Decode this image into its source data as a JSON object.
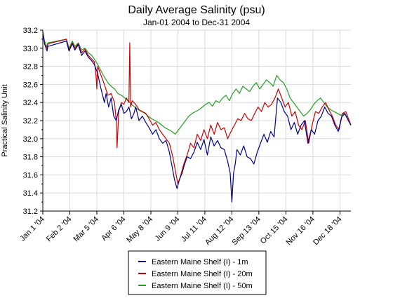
{
  "chart_data": {
    "type": "line",
    "title": "Daily Average Salinity (psu)",
    "subtitle": "Jan-01 2004 to Dec-31 2004",
    "xlabel": "",
    "ylabel": "Practical Salinity Unit",
    "x_range": [
      "2004-01-01",
      "2004-12-31"
    ],
    "ylim": [
      31.2,
      33.2
    ],
    "yticks": [
      31.2,
      31.4,
      31.6,
      31.8,
      32.0,
      32.2,
      32.4,
      32.6,
      32.8,
      33.0,
      33.2
    ],
    "ytick_labels": [
      "31.2",
      "31.4",
      "31.6",
      "31.8",
      "32.0",
      "32.2",
      "32.4",
      "32.6",
      "32.8",
      "33.0",
      "33.2"
    ],
    "xticks": [
      "2004-01-01",
      "2004-02-02",
      "2004-03-05",
      "2004-04-06",
      "2004-05-08",
      "2004-06-09",
      "2004-07-11",
      "2004-08-12",
      "2004-09-13",
      "2004-10-15",
      "2004-11-16",
      "2004-12-18"
    ],
    "xtick_labels": [
      "Jan 1 '04",
      "Feb 2 '04",
      "Mar 5 '04",
      "Apr 6 '04",
      "May 8 '04",
      "Jun 9 '04",
      "Jul 11 '04",
      "Aug 12 '04",
      "Sep 13 '04",
      "Oct 15 '04",
      "Nov 16 '04",
      "Dec 18 '04"
    ],
    "grid": true,
    "legend_position": "bottom-center",
    "series": [
      {
        "name": "Eastern Maine Shelf (I) - 1m",
        "color": "#00008b",
        "x": [
          "2004-01-01",
          "2004-01-03",
          "2004-01-06",
          "2004-01-07",
          "2004-01-29",
          "2004-02-01",
          "2004-02-05",
          "2004-02-08",
          "2004-02-12",
          "2004-02-16",
          "2004-02-20",
          "2004-02-24",
          "2004-02-28",
          "2004-03-02",
          "2004-03-06",
          "2004-03-10",
          "2004-03-14",
          "2004-03-16",
          "2004-03-19",
          "2004-03-22",
          "2004-03-25",
          "2004-03-28",
          "2004-03-31",
          "2004-04-03",
          "2004-04-06",
          "2004-04-09",
          "2004-04-12",
          "2004-04-15",
          "2004-04-18",
          "2004-04-20",
          "2004-04-24",
          "2004-04-28",
          "2004-05-02",
          "2004-05-06",
          "2004-05-10",
          "2004-05-14",
          "2004-05-18",
          "2004-05-22",
          "2004-05-26",
          "2004-05-30",
          "2004-06-02",
          "2004-06-05",
          "2004-06-08",
          "2004-06-11",
          "2004-06-14",
          "2004-06-17",
          "2004-06-20",
          "2004-06-24",
          "2004-06-28",
          "2004-07-02",
          "2004-07-06",
          "2004-07-10",
          "2004-07-14",
          "2004-07-18",
          "2004-07-22",
          "2004-07-26",
          "2004-07-30",
          "2004-08-03",
          "2004-08-07",
          "2004-08-10",
          "2004-08-12",
          "2004-08-14",
          "2004-08-16",
          "2004-08-18",
          "2004-08-22",
          "2004-08-26",
          "2004-08-30",
          "2004-09-03",
          "2004-09-07",
          "2004-09-11",
          "2004-09-15",
          "2004-09-19",
          "2004-09-23",
          "2004-09-27",
          "2004-10-01",
          "2004-10-05",
          "2004-10-09",
          "2004-10-13",
          "2004-10-17",
          "2004-10-21",
          "2004-10-25",
          "2004-10-29",
          "2004-11-02",
          "2004-11-06",
          "2004-11-10",
          "2004-11-14",
          "2004-11-18",
          "2004-11-22",
          "2004-11-26",
          "2004-11-30",
          "2004-12-04",
          "2004-12-08",
          "2004-12-12",
          "2004-12-16",
          "2004-12-20",
          "2004-12-24",
          "2004-12-28",
          "2004-12-31"
        ],
        "y": [
          33.18,
          33.05,
          32.97,
          33.02,
          33.08,
          32.97,
          33.05,
          32.98,
          33.04,
          32.92,
          32.97,
          32.9,
          32.86,
          32.82,
          32.72,
          32.55,
          32.4,
          32.5,
          32.35,
          32.45,
          32.25,
          32.2,
          32.32,
          32.38,
          32.28,
          32.3,
          32.35,
          32.22,
          32.28,
          32.35,
          32.2,
          32.25,
          32.18,
          32.12,
          32.05,
          32.1,
          32.0,
          31.95,
          31.98,
          31.85,
          31.7,
          31.55,
          31.45,
          31.55,
          31.62,
          31.72,
          31.8,
          31.78,
          31.85,
          31.96,
          31.88,
          31.99,
          31.82,
          32.02,
          31.92,
          31.98,
          31.9,
          31.88,
          31.75,
          31.62,
          31.3,
          31.62,
          31.72,
          31.88,
          31.82,
          31.92,
          31.8,
          31.78,
          31.72,
          31.85,
          31.95,
          32.05,
          31.96,
          32.08,
          32.02,
          32.45,
          32.4,
          32.3,
          32.25,
          32.1,
          32.18,
          32.05,
          32.15,
          32.2,
          31.95,
          32.1,
          32.05,
          32.2,
          32.25,
          32.35,
          32.28,
          32.25,
          32.15,
          32.08,
          32.24,
          32.28,
          32.2,
          32.15
        ]
      },
      {
        "name": "Eastern Maine Shelf (I) - 20m",
        "color": "#cc0000",
        "x": [
          "2004-01-01",
          "2004-01-03",
          "2004-01-06",
          "2004-01-07",
          "2004-01-29",
          "2004-02-01",
          "2004-02-05",
          "2004-02-08",
          "2004-02-12",
          "2004-02-16",
          "2004-02-20",
          "2004-02-24",
          "2004-02-28",
          "2004-03-02",
          "2004-03-04",
          "2004-03-05",
          "2004-03-06",
          "2004-03-10",
          "2004-03-14",
          "2004-03-18",
          "2004-03-22",
          "2004-03-26",
          "2004-03-28",
          "2004-03-29",
          "2004-03-31",
          "2004-04-03",
          "2004-04-06",
          "2004-04-09",
          "2004-04-12",
          "2004-04-13",
          "2004-04-14",
          "2004-04-16",
          "2004-04-20",
          "2004-04-24",
          "2004-04-28",
          "2004-05-02",
          "2004-05-06",
          "2004-05-10",
          "2004-05-14",
          "2004-05-18",
          "2004-05-22",
          "2004-05-26",
          "2004-05-30",
          "2004-06-03",
          "2004-06-06",
          "2004-06-09",
          "2004-06-12",
          "2004-06-16",
          "2004-06-20",
          "2004-06-24",
          "2004-06-28",
          "2004-07-02",
          "2004-07-06",
          "2004-07-10",
          "2004-07-14",
          "2004-07-18",
          "2004-07-22",
          "2004-07-26",
          "2004-07-30",
          "2004-08-03",
          "2004-08-07",
          "2004-08-11",
          "2004-08-15",
          "2004-08-19",
          "2004-08-23",
          "2004-08-27",
          "2004-08-31",
          "2004-09-04",
          "2004-09-08",
          "2004-09-12",
          "2004-09-16",
          "2004-09-20",
          "2004-09-24",
          "2004-09-28",
          "2004-10-02",
          "2004-10-06",
          "2004-10-10",
          "2004-10-14",
          "2004-10-18",
          "2004-10-22",
          "2004-10-26",
          "2004-10-30",
          "2004-11-03",
          "2004-11-07",
          "2004-11-11",
          "2004-11-15",
          "2004-11-19",
          "2004-11-23",
          "2004-11-27",
          "2004-12-01",
          "2004-12-05",
          "2004-12-09",
          "2004-12-13",
          "2004-12-17",
          "2004-12-21",
          "2004-12-25",
          "2004-12-29",
          "2004-12-31"
        ],
        "y": [
          33.18,
          33.05,
          33.0,
          33.05,
          33.1,
          32.98,
          33.06,
          33.0,
          33.05,
          32.95,
          32.99,
          32.92,
          32.88,
          32.85,
          32.7,
          32.55,
          32.8,
          32.7,
          32.6,
          32.48,
          32.5,
          32.4,
          32.2,
          31.9,
          32.3,
          32.4,
          32.38,
          32.45,
          32.4,
          33.06,
          32.35,
          32.42,
          32.38,
          32.32,
          32.3,
          32.28,
          32.22,
          32.15,
          32.18,
          32.1,
          32.05,
          32.0,
          31.95,
          31.8,
          31.65,
          31.5,
          31.58,
          31.72,
          31.82,
          31.95,
          31.9,
          32.05,
          31.98,
          32.1,
          32.0,
          32.15,
          32.05,
          32.18,
          32.1,
          32.12,
          32.0,
          32.08,
          32.15,
          32.22,
          32.2,
          32.28,
          32.22,
          32.2,
          32.28,
          32.35,
          32.3,
          32.4,
          32.35,
          32.38,
          32.45,
          32.55,
          32.45,
          32.35,
          32.4,
          32.25,
          32.3,
          32.15,
          32.1,
          32.2,
          31.95,
          32.15,
          32.3,
          32.28,
          32.35,
          32.4,
          32.32,
          32.25,
          32.15,
          32.1,
          32.28,
          32.3,
          32.2,
          32.15
        ]
      },
      {
        "name": "Eastern Maine Shelf (I) - 50m",
        "color": "#22a022",
        "x": [
          "2004-01-01",
          "2004-01-03",
          "2004-01-06",
          "2004-01-07",
          "2004-01-29",
          "2004-02-01",
          "2004-02-05",
          "2004-02-08",
          "2004-02-12",
          "2004-02-16",
          "2004-02-20",
          "2004-02-24",
          "2004-02-28",
          "2004-03-02",
          "2004-03-06",
          "2004-03-10",
          "2004-03-14",
          "2004-03-18",
          "2004-03-22",
          "2004-03-26",
          "2004-03-30",
          "2004-04-03",
          "2004-04-07",
          "2004-04-11",
          "2004-04-15",
          "2004-04-19",
          "2004-04-23",
          "2004-04-27",
          "2004-05-01",
          "2004-05-05",
          "2004-05-09",
          "2004-05-13",
          "2004-05-17",
          "2004-05-21",
          "2004-05-25",
          "2004-05-29",
          "2004-06-02",
          "2004-06-06",
          "2004-06-10",
          "2004-06-14",
          "2004-06-18",
          "2004-06-22",
          "2004-06-26",
          "2004-06-30",
          "2004-07-04",
          "2004-07-08",
          "2004-07-12",
          "2004-07-16",
          "2004-07-20",
          "2004-07-24",
          "2004-07-28",
          "2004-08-01",
          "2004-08-05",
          "2004-08-09",
          "2004-08-13",
          "2004-08-17",
          "2004-08-21",
          "2004-08-25",
          "2004-08-29",
          "2004-09-02",
          "2004-09-06",
          "2004-09-10",
          "2004-09-14",
          "2004-09-18",
          "2004-09-22",
          "2004-09-26",
          "2004-09-30",
          "2004-10-04",
          "2004-10-08",
          "2004-10-12",
          "2004-10-16",
          "2004-10-20",
          "2004-10-24",
          "2004-10-28",
          "2004-11-01",
          "2004-11-05",
          "2004-11-09",
          "2004-11-13",
          "2004-11-17",
          "2004-11-21",
          "2004-11-25",
          "2004-11-29",
          "2004-12-03",
          "2004-12-07",
          "2004-12-11",
          "2004-12-15",
          "2004-12-19",
          "2004-12-23",
          "2004-12-27",
          "2004-12-31"
        ],
        "y": [
          33.18,
          33.08,
          33.02,
          33.06,
          33.1,
          33.0,
          33.08,
          33.02,
          33.06,
          32.98,
          33.0,
          32.95,
          32.92,
          32.88,
          32.82,
          32.75,
          32.68,
          32.62,
          32.58,
          32.55,
          32.5,
          32.48,
          32.45,
          32.42,
          32.38,
          32.35,
          32.32,
          32.3,
          32.28,
          32.25,
          32.22,
          32.2,
          32.18,
          32.15,
          32.12,
          32.1,
          32.08,
          32.05,
          32.1,
          32.15,
          32.2,
          32.25,
          32.28,
          32.3,
          32.32,
          32.35,
          32.38,
          32.4,
          32.36,
          32.42,
          32.4,
          32.45,
          32.48,
          32.42,
          32.5,
          32.55,
          32.5,
          32.58,
          32.55,
          32.52,
          32.58,
          32.62,
          32.55,
          32.6,
          32.65,
          32.62,
          32.58,
          32.7,
          32.65,
          32.62,
          32.55,
          32.45,
          32.4,
          32.35,
          32.3,
          32.25,
          32.28,
          32.32,
          32.38,
          32.42,
          32.45,
          32.4,
          32.35,
          32.32,
          32.3,
          32.28,
          32.26,
          32.28,
          32.22,
          32.15
        ]
      }
    ]
  }
}
